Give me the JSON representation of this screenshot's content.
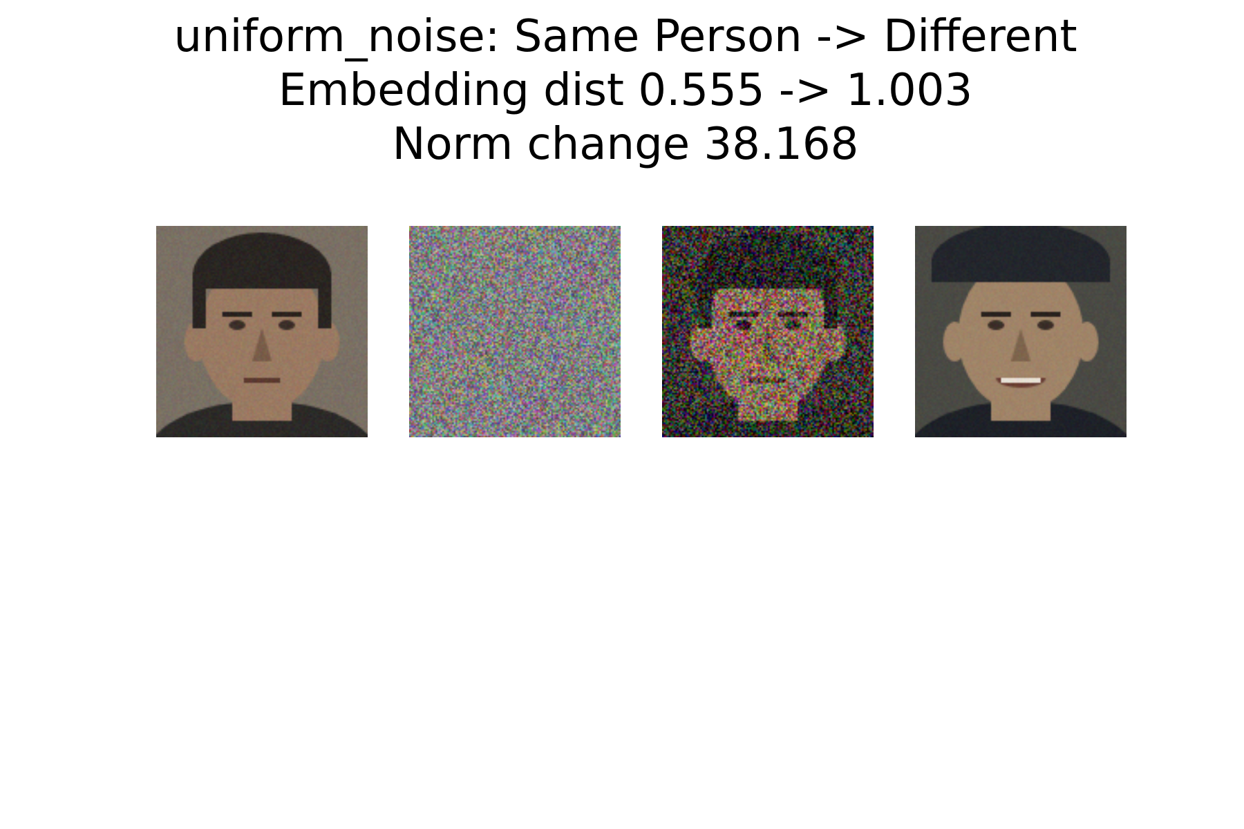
{
  "figure": {
    "title_lines": [
      "uniform_noise: Same Person -> Different",
      "Embedding dist 0.555 -> 1.003",
      "Norm change 38.168"
    ]
  },
  "panels": [
    {
      "name": "original-face-image",
      "kind": "face",
      "palette": {
        "bg": "#7a7064",
        "skin": "#9a7a62",
        "hair": "#2a2522",
        "shirt": "#2c2a28"
      }
    },
    {
      "name": "uniform-noise-image",
      "kind": "noise",
      "palette": {
        "base": "#7f7f7f"
      }
    },
    {
      "name": "perturbed-face-image",
      "kind": "noisy-face",
      "palette": {
        "bg": "#3a3530",
        "skin": "#8c6e5a",
        "hair": "#221e1c"
      }
    },
    {
      "name": "reference-face-image",
      "kind": "face2",
      "palette": {
        "bg": "#4a4a44",
        "skin": "#a08468",
        "hair": "#1f2024",
        "cap": "#23262c",
        "shirt": "#1e2128"
      }
    }
  ]
}
